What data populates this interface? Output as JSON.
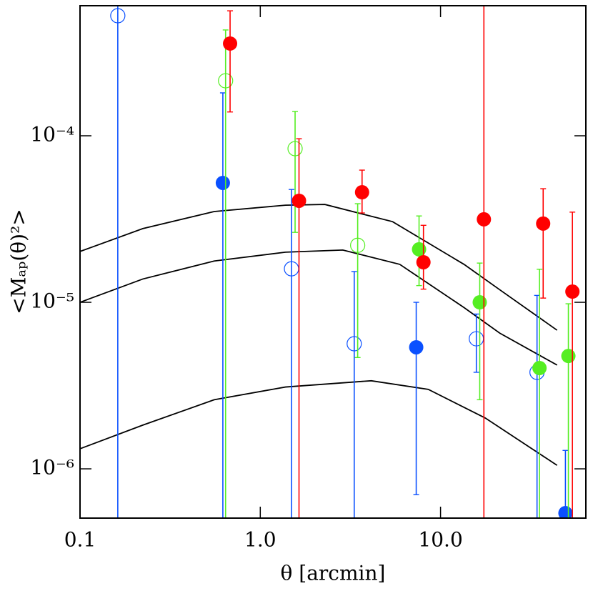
{
  "chart_data": {
    "type": "scatter",
    "xlabel": "θ [arcmin]",
    "ylabel": "<Mₐₚ(θ)²>",
    "log_x": true,
    "log_y": true,
    "xlim": [
      0.1,
      64
    ],
    "ylim": [
      5.06e-07,
      0.000604
    ],
    "xticks": [
      0.1,
      {
        "value": 1,
        "label": "1.0"
      },
      {
        "value": 10,
        "label": "10.0"
      }
    ],
    "yticks": [
      {
        "value": 1e-06,
        "label": "10⁻⁶"
      },
      {
        "value": 1e-05,
        "label": "10⁻⁵"
      },
      {
        "value": 0.0001,
        "label": "10⁻⁴"
      }
    ],
    "series": [
      {
        "color": "#0a50ff",
        "marker": "filled",
        "x": [
          0.62,
          7.33,
          49.3
        ],
        "values": [
          5.21e-05,
          5.37e-06,
          5.42e-07
        ],
        "err_low": [
          null,
          7e-07,
          null
        ],
        "err_high": [
          0.000181,
          1e-05,
          1.29e-06
        ]
      },
      {
        "color": "#0a50ff",
        "marker": "open",
        "x": [
          0.162,
          1.49,
          3.32,
          15.8,
          34.3
        ],
        "values": [
          0.000526,
          1.59e-05,
          5.64e-06,
          6.04e-06,
          3.8e-06
        ],
        "err_low": [
          null,
          null,
          null,
          3.8e-06,
          null
        ],
        "err_high": [
          null,
          4.76e-05,
          1.53e-05,
          8.5e-06,
          1.1e-05
        ]
      },
      {
        "color": "#55ee22",
        "marker": "filled",
        "x": [
          7.6,
          16.5,
          35.4,
          51.2
        ],
        "values": [
          2.08e-05,
          1e-05,
          4.03e-06,
          4.76e-06
        ],
        "err_low": [
          1.26e-05,
          2.6e-06,
          null,
          null
        ],
        "err_high": [
          3.3e-05,
          1.72e-05,
          1.58e-05,
          9.8e-06
        ]
      },
      {
        "color": "#55ee22",
        "marker": "open",
        "x": [
          0.642,
          1.56,
          3.47
        ],
        "values": [
          0.000214,
          8.37e-05,
          2.2e-05
        ],
        "err_low": [
          null,
          2.63e-05,
          4.66e-06
        ],
        "err_high": [
          0.000432,
          0.00014,
          3.91e-05
        ]
      },
      {
        "color": "#ff0000",
        "marker": "filled",
        "x": [
          0.68,
          1.64,
          3.67,
          8.04,
          17.4,
          37.1,
          53.9
        ],
        "values": [
          0.000358,
          4.07e-05,
          4.58e-05,
          1.74e-05,
          3.15e-05,
          2.97e-05,
          1.16e-05
        ],
        "err_low": [
          0.000139,
          null,
          3.44e-05,
          1.2e-05,
          null,
          1.06e-05,
          null
        ],
        "err_high": [
          0.000563,
          9.6e-05,
          6.22e-05,
          2.9e-05,
          null,
          4.81e-05,
          3.48e-05
        ]
      }
    ],
    "curves": [
      {
        "color": "#000000",
        "x": [
          0.1,
          0.223,
          0.555,
          1.38,
          2.28,
          5.42,
          13.5,
          21.3,
          44.3
        ],
        "values": [
          2.02e-05,
          2.77e-05,
          3.51e-05,
          3.83e-05,
          3.87e-05,
          3.05e-05,
          1.69e-05,
          1.19e-05,
          6.8e-06
        ]
      },
      {
        "color": "#000000",
        "x": [
          0.1,
          0.223,
          0.555,
          1.38,
          2.87,
          5.94,
          13.5,
          21.3,
          44.3
        ],
        "values": [
          1e-05,
          1.38e-05,
          1.77e-05,
          2e-05,
          2.06e-05,
          1.69e-05,
          9.3e-06,
          6.53e-06,
          4.2e-06
        ]
      },
      {
        "color": "#000000",
        "x": [
          0.1,
          0.223,
          0.555,
          1.38,
          4.13,
          8.55,
          17.7,
          44.3
        ],
        "values": [
          1.32e-06,
          1.83e-06,
          2.6e-06,
          3.1e-06,
          3.38e-06,
          3e-06,
          2.02e-06,
          1.05e-06
        ]
      }
    ]
  }
}
